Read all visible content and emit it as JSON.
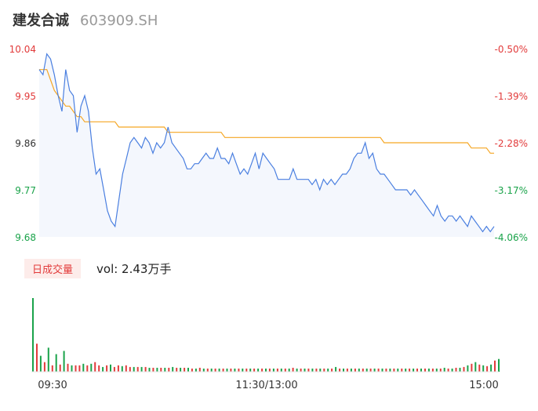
{
  "header": {
    "name": "建发合诚",
    "code": "603909.SH"
  },
  "volume_tag": "日成交量",
  "volume_text": "vol: 2.43万手",
  "colors": {
    "price": "#4a7fe0",
    "avg": "#f5a623",
    "up": "#e23b3b",
    "down": "#1aa34a",
    "area": "#f4f7fd"
  },
  "chart_data": [
    {
      "type": "line",
      "subtype": "intraday",
      "ylim": [
        9.68,
        10.04
      ],
      "yticks_left": [
        "10.04",
        "9.95",
        "9.86",
        "9.77",
        "9.68"
      ],
      "yticks_right": [
        "-0.50%",
        "-1.39%",
        "-2.28%",
        "-3.17%",
        "-4.06%"
      ],
      "xticks": [
        "09:30",
        "11:30/13:00",
        "15:00"
      ],
      "series": [
        {
          "values": [
            10.0,
            9.99,
            10.03,
            10.02,
            9.99,
            9.95,
            9.92,
            10.0,
            9.96,
            9.95,
            9.88,
            9.93,
            9.95,
            9.92,
            9.85,
            9.8,
            9.81,
            9.77,
            9.73,
            9.71,
            9.7,
            9.75,
            9.8,
            9.83,
            9.86,
            9.87,
            9.86,
            9.85,
            9.87,
            9.86,
            9.84,
            9.86,
            9.85,
            9.86,
            9.89,
            9.86,
            9.85,
            9.84,
            9.83,
            9.81,
            9.81,
            9.82,
            9.82,
            9.83,
            9.84,
            9.83,
            9.83,
            9.85,
            9.83,
            9.83,
            9.82,
            9.84,
            9.82,
            9.8,
            9.81,
            9.8,
            9.82,
            9.84,
            9.81,
            9.84,
            9.83,
            9.82,
            9.81,
            9.79,
            9.79,
            9.79,
            9.79,
            9.81,
            9.79,
            9.79,
            9.79,
            9.79,
            9.78,
            9.79,
            9.77,
            9.79,
            9.78,
            9.79,
            9.78,
            9.79,
            9.8,
            9.8,
            9.81,
            9.83,
            9.84,
            9.84,
            9.86,
            9.83,
            9.84,
            9.81,
            9.8,
            9.8,
            9.79,
            9.78,
            9.77,
            9.77,
            9.77,
            9.77,
            9.76,
            9.77,
            9.76,
            9.75,
            9.74,
            9.73,
            9.72,
            9.74,
            9.72,
            9.71,
            9.72,
            9.72,
            9.71,
            9.72,
            9.71,
            9.7,
            9.72,
            9.71,
            9.7,
            9.69,
            9.7,
            9.69,
            9.7
          ],
          "name": ""
        },
        {
          "values": [
            10.0,
            10.0,
            10.0,
            9.98,
            9.96,
            9.95,
            9.94,
            9.93,
            9.93,
            9.92,
            9.91,
            9.91,
            9.9,
            9.9,
            9.9,
            9.9,
            9.9,
            9.9,
            9.9,
            9.9,
            9.9,
            9.89,
            9.89,
            9.89,
            9.89,
            9.89,
            9.89,
            9.89,
            9.89,
            9.89,
            9.89,
            9.89,
            9.89,
            9.89,
            9.88,
            9.88,
            9.88,
            9.88,
            9.88,
            9.88,
            9.88,
            9.88,
            9.88,
            9.88,
            9.88,
            9.88,
            9.88,
            9.88,
            9.88,
            9.87,
            9.87,
            9.87,
            9.87,
            9.87,
            9.87,
            9.87,
            9.87,
            9.87,
            9.87,
            9.87,
            9.87,
            9.87,
            9.87,
            9.87,
            9.87,
            9.87,
            9.87,
            9.87,
            9.87,
            9.87,
            9.87,
            9.87,
            9.87,
            9.87,
            9.87,
            9.87,
            9.87,
            9.87,
            9.87,
            9.87,
            9.87,
            9.87,
            9.87,
            9.87,
            9.87,
            9.87,
            9.87,
            9.87,
            9.87,
            9.87,
            9.87,
            9.86,
            9.86,
            9.86,
            9.86,
            9.86,
            9.86,
            9.86,
            9.86,
            9.86,
            9.86,
            9.86,
            9.86,
            9.86,
            9.86,
            9.86,
            9.86,
            9.86,
            9.86,
            9.86,
            9.86,
            9.86,
            9.86,
            9.86,
            9.85,
            9.85,
            9.85,
            9.85,
            9.85,
            9.84,
            9.84
          ],
          "name": ""
        }
      ]
    },
    {
      "type": "bar",
      "subtype": "volume",
      "values": [
        92,
        35,
        20,
        12,
        30,
        8,
        22,
        9,
        26,
        10,
        8,
        8,
        8,
        10,
        8,
        10,
        12,
        8,
        6,
        8,
        9,
        6,
        8,
        7,
        8,
        6,
        6,
        6,
        6,
        6,
        5,
        5,
        5,
        5,
        5,
        5,
        6,
        5,
        5,
        5,
        5,
        4,
        4,
        5,
        4,
        4,
        4,
        4,
        4,
        4,
        4,
        4,
        4,
        4,
        4,
        4,
        4,
        4,
        4,
        4,
        4,
        4,
        4,
        4,
        4,
        4,
        4,
        5,
        4,
        4,
        4,
        4,
        4,
        4,
        4,
        4,
        4,
        4,
        6,
        4,
        4,
        4,
        4,
        4,
        4,
        4,
        4,
        4,
        4,
        4,
        4,
        4,
        4,
        4,
        4,
        4,
        4,
        4,
        4,
        4,
        4,
        4,
        4,
        4,
        4,
        4,
        5,
        4,
        4,
        5,
        5,
        6,
        8,
        10,
        12,
        9,
        8,
        7,
        9,
        14,
        16
      ],
      "colors_up": [
        false,
        true,
        false,
        true,
        false,
        true,
        false,
        true,
        false,
        true,
        false,
        true,
        true,
        false,
        true,
        false,
        true,
        true,
        false,
        true,
        false,
        true,
        true,
        false,
        true,
        true,
        false,
        true,
        false,
        true,
        false,
        true,
        false,
        true,
        false,
        true,
        false,
        true,
        false,
        true,
        false,
        true,
        false,
        true,
        false,
        true,
        false,
        true,
        false,
        true,
        false,
        true,
        false,
        true,
        false,
        true,
        false,
        true,
        false,
        true,
        false,
        true,
        false,
        true,
        false,
        true,
        false,
        true,
        false,
        true,
        false,
        true,
        false,
        true,
        false,
        true,
        false,
        true,
        false,
        true,
        false,
        true,
        false,
        true,
        false,
        true,
        false,
        true,
        false,
        true,
        false,
        true,
        false,
        true,
        false,
        true,
        false,
        true,
        false,
        true,
        false,
        true,
        false,
        true,
        false,
        true,
        false,
        true,
        false,
        true,
        false,
        true,
        false,
        true,
        false,
        true,
        false,
        true,
        false,
        true,
        false
      ]
    }
  ]
}
